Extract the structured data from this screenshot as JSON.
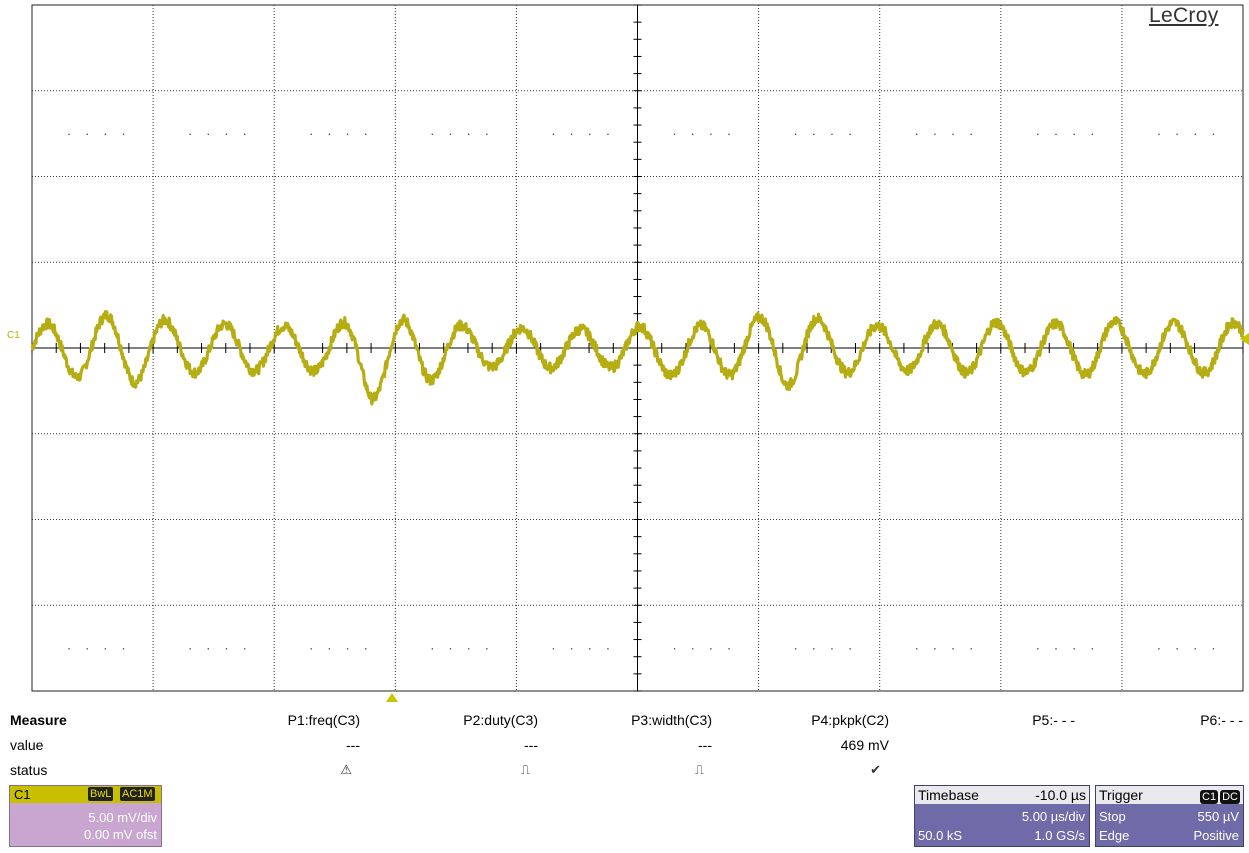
{
  "brand": "LeCroy",
  "channel_marker": "C1",
  "colors": {
    "trace": "#b5ad12",
    "grid": "#222222",
    "channel_panel": "#c8a6cf",
    "channel_header": "#c6c000",
    "timebase_panel": "#6f6aa8"
  },
  "measure": {
    "title": "Measure",
    "row_labels": [
      "value",
      "status"
    ],
    "params": [
      {
        "name": "P1:freq(C3)",
        "value": "---",
        "status_icon": "warning-icon",
        "status_glyph": "⚠"
      },
      {
        "name": "P2:duty(C3)",
        "value": "---",
        "status_icon": "pulse-icon",
        "status_glyph": "⎍"
      },
      {
        "name": "P3:width(C3)",
        "value": "---",
        "status_icon": "pulse-icon",
        "status_glyph": "⎍"
      },
      {
        "name": "P4:pkpk(C2)",
        "value": "469 mV",
        "status_icon": "check-icon",
        "status_glyph": "✔"
      },
      {
        "name": "P5:- - -",
        "value": "",
        "status_icon": "",
        "status_glyph": ""
      },
      {
        "name": "P6:- - -",
        "value": "",
        "status_icon": "",
        "status_glyph": ""
      }
    ]
  },
  "channel": {
    "name": "C1",
    "badges": [
      "BwL",
      "AC1M"
    ],
    "scale": "5.00 mV/div",
    "offset": "0.00 mV ofst"
  },
  "timebase": {
    "label": "Timebase",
    "delay": "-10.0 µs",
    "scale": "5.00 µs/div",
    "samples": "50.0 kS",
    "rate": "1.0 GS/s"
  },
  "trigger": {
    "label": "Trigger",
    "chips": [
      "C1",
      "DC"
    ],
    "mode": "Stop",
    "level": "550 µV",
    "type": "Edge",
    "slope": "Positive"
  },
  "chart_data": {
    "type": "line",
    "grid": {
      "h_divisions": 10,
      "v_divisions": 8
    },
    "series": [
      {
        "period_divisions": 0.49,
        "x_divisions": [
          0,
          0.2,
          0.4,
          0.6,
          0.8,
          1.0,
          1.2,
          1.4,
          1.6,
          1.8,
          2.0,
          2.2,
          2.4,
          2.6,
          2.8,
          3.0,
          3.2,
          3.4,
          3.6,
          3.8,
          4.0,
          4.2,
          4.4,
          4.6,
          4.8,
          5.0,
          5.2,
          5.4,
          5.6,
          5.8,
          6.0,
          6.2,
          6.4,
          6.6,
          6.8,
          7.0,
          7.2,
          7.4,
          7.6,
          7.8,
          8.0,
          8.2,
          8.4,
          8.6,
          8.8,
          9.0,
          9.2,
          9.4,
          9.6,
          9.8,
          10.0
        ],
        "envelope_divisions": [
          0.25,
          0.3,
          0.35,
          0.38,
          0.42,
          0.35,
          0.3,
          0.28,
          0.28,
          0.27,
          0.26,
          0.25,
          0.28,
          0.35,
          0.45,
          0.42,
          0.4,
          0.3,
          0.25,
          0.22,
          0.23,
          0.24,
          0.22,
          0.22,
          0.23,
          0.26,
          0.25,
          0.28,
          0.3,
          0.32,
          0.35,
          0.45,
          0.38,
          0.3,
          0.28,
          0.26,
          0.26,
          0.28,
          0.28,
          0.3,
          0.3,
          0.28,
          0.28,
          0.3,
          0.32,
          0.3,
          0.3,
          0.3,
          0.28,
          0.3,
          0.3
        ],
        "center_offset_divisions": [
          0,
          0,
          0,
          0,
          0,
          0,
          0,
          0,
          0,
          0,
          0,
          0,
          0,
          -0.05,
          -0.15,
          -0.1,
          -0.05,
          0,
          0,
          0,
          0,
          0,
          0,
          0,
          0,
          0,
          -0.05,
          -0.08,
          0,
          0,
          0,
          0,
          0,
          0,
          0,
          0,
          0,
          0,
          0,
          0,
          0,
          0,
          0,
          0,
          0,
          0,
          0,
          0,
          0,
          0,
          0
        ]
      }
    ]
  }
}
